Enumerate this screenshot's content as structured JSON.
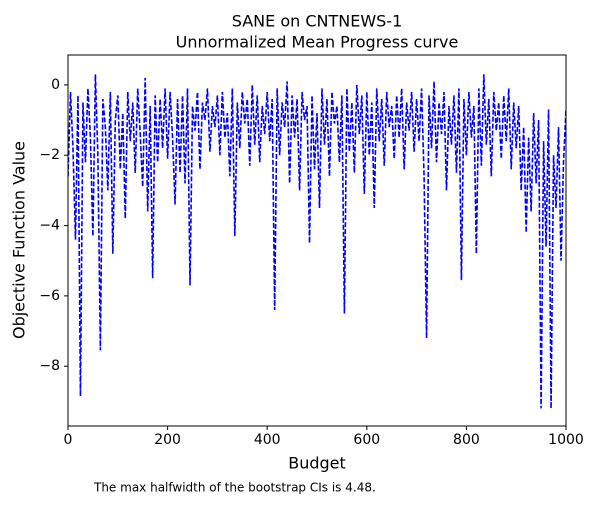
{
  "chart_data": {
    "type": "line",
    "title": "SANE on CNTNEWS-1",
    "subtitle": "Unnormalized Mean Progress curve",
    "xlabel": "Budget",
    "ylabel": "Objective Function Value",
    "annotation": "The max halfwidth of the bootstrap CIs is 4.48.",
    "x": [
      0,
      5,
      10,
      15,
      20,
      25,
      30,
      35,
      40,
      45,
      50,
      55,
      60,
      65,
      70,
      75,
      80,
      85,
      90,
      95,
      100,
      105,
      110,
      115,
      120,
      125,
      130,
      135,
      140,
      145,
      150,
      155,
      160,
      165,
      170,
      175,
      180,
      185,
      190,
      195,
      200,
      205,
      210,
      215,
      220,
      225,
      230,
      235,
      240,
      245,
      250,
      255,
      260,
      265,
      270,
      275,
      280,
      285,
      290,
      295,
      300,
      305,
      310,
      315,
      320,
      325,
      330,
      335,
      340,
      345,
      350,
      355,
      360,
      365,
      370,
      375,
      380,
      385,
      390,
      395,
      400,
      405,
      410,
      415,
      420,
      425,
      430,
      435,
      440,
      445,
      450,
      455,
      460,
      465,
      470,
      475,
      480,
      485,
      490,
      495,
      500,
      505,
      510,
      515,
      520,
      525,
      530,
      535,
      540,
      545,
      550,
      555,
      560,
      565,
      570,
      575,
      580,
      585,
      590,
      595,
      600,
      605,
      610,
      615,
      620,
      625,
      630,
      635,
      640,
      645,
      650,
      655,
      660,
      665,
      670,
      675,
      680,
      685,
      690,
      695,
      700,
      705,
      710,
      715,
      720,
      725,
      730,
      735,
      740,
      745,
      750,
      755,
      760,
      765,
      770,
      775,
      780,
      785,
      790,
      795,
      800,
      805,
      810,
      815,
      820,
      825,
      830,
      835,
      840,
      845,
      850,
      855,
      860,
      865,
      870,
      875,
      880,
      885,
      890,
      895,
      900,
      905,
      910,
      915,
      920,
      925,
      930,
      935,
      940,
      945,
      950,
      955,
      960,
      965,
      970,
      975,
      980,
      985,
      990,
      995,
      1000
    ],
    "series": [
      {
        "color": "#0000ff",
        "dashed": true,
        "values": [
          -2.6,
          -0.2,
          -1.8,
          -4.4,
          -0.3,
          -8.85,
          -0.5,
          -2.2,
          -0.1,
          -1.5,
          -4.3,
          0.3,
          -2.0,
          -7.55,
          -0.4,
          -1.2,
          -3.0,
          -0.2,
          -4.8,
          -1.0,
          -0.3,
          -2.4,
          -0.8,
          -3.8,
          -0.2,
          -1.6,
          -0.5,
          -2.5,
          -0.1,
          -1.4,
          -2.9,
          0.2,
          -3.6,
          -0.6,
          -5.5,
          -0.3,
          -2.2,
          -0.4,
          -1.8,
          -0.1,
          -2.1,
          -0.2,
          -1.5,
          -3.4,
          -0.4,
          -2.5,
          -0.3,
          -2.8,
          -0.1,
          -5.7,
          -0.6,
          -1.3,
          -0.2,
          -2.4,
          -0.5,
          -1.0,
          -0.1,
          -1.9,
          -0.6,
          -1.2,
          -0.3,
          -2.0,
          -0.2,
          -1.5,
          -0.8,
          -2.6,
          -0.1,
          -4.3,
          -0.5,
          -1.8,
          -0.2,
          -1.1,
          -0.4,
          -2.3,
          0.0,
          -1.7,
          -0.3,
          -2.2,
          -0.6,
          -1.4,
          -0.2,
          -1.6,
          -0.4,
          -6.4,
          -0.1,
          -2.0,
          -0.5,
          -1.2,
          0.1,
          -2.8,
          -0.3,
          -1.5,
          -0.4,
          -3.0,
          -0.2,
          -1.0,
          -0.6,
          -4.5,
          -0.3,
          -2.4,
          -0.8,
          -3.5,
          -0.1,
          -1.7,
          -0.4,
          -2.6,
          -0.2,
          -1.1,
          -0.6,
          -2.2,
          -0.3,
          -6.5,
          -0.1,
          -1.9,
          -0.5,
          -2.5,
          0.0,
          -1.4,
          -0.3,
          -3.1,
          -0.2,
          -2.0,
          -0.5,
          -3.5,
          -0.1,
          -1.6,
          -0.4,
          -2.3,
          -0.2,
          -1.2,
          -0.6,
          -2.1,
          -0.3,
          -1.5,
          -0.1,
          -2.4,
          -0.5,
          -1.3,
          -0.2,
          -1.9,
          -0.4,
          -1.6,
          -0.1,
          -2.6,
          -7.2,
          -0.3,
          -1.8,
          0.1,
          -2.2,
          -0.5,
          -1.4,
          -0.2,
          -3.0,
          -0.6,
          -1.7,
          -0.3,
          -2.5,
          -0.1,
          -5.55,
          -0.4,
          -2.0,
          -0.2,
          -1.5,
          -0.6,
          -4.8,
          -0.1,
          -2.3,
          0.3,
          -1.7,
          -0.4,
          -2.6,
          -0.2,
          -1.3,
          -0.5,
          -2.1,
          -0.3,
          -1.6,
          -0.1,
          -2.4,
          -0.5,
          -1.8,
          -0.6,
          -3.0,
          -1.2,
          -4.2,
          -1.5,
          -3.6,
          -0.8,
          -2.8,
          -1.0,
          -9.2,
          -1.6,
          -4.6,
          -0.7,
          -9.2,
          -2.0,
          -3.5,
          -1.2,
          -5.0,
          -2.2,
          -0.7
        ]
      }
    ],
    "xlim": [
      0,
      1000
    ],
    "ylim": [
      -9.7,
      0.85
    ],
    "xticks": [
      0,
      200,
      400,
      600,
      800,
      1000
    ],
    "yticks": [
      0,
      {
        "value": -2,
        "label": "−2"
      },
      {
        "value": -4,
        "label": "−4"
      },
      {
        "value": -6,
        "label": "−6"
      },
      {
        "value": -8,
        "label": "−8"
      }
    ],
    "grid": false
  }
}
